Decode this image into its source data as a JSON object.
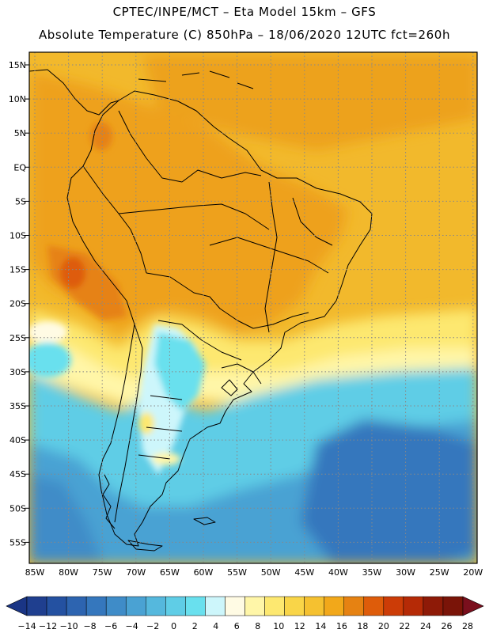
{
  "header": {
    "line1": "CPTEC/INPE/MCT –  Eta Model 15km – GFS",
    "line2": "Absolute Temperature (C) 850hPa – 18/06/2020 12UTC fct=260h"
  },
  "map": {
    "lat_labels": [
      "15N",
      "10N",
      "5N",
      "EQ",
      "5S",
      "10S",
      "15S",
      "20S",
      "25S",
      "30S",
      "35S",
      "40S",
      "45S",
      "50S",
      "55S"
    ],
    "lon_labels": [
      "85W",
      "80W",
      "75W",
      "70W",
      "65W",
      "60W",
      "55W",
      "50W",
      "45W",
      "40W",
      "35W",
      "30W",
      "25W",
      "20W"
    ]
  },
  "colorbar": {
    "labels": [
      "-14",
      "-12",
      "-10",
      "-8",
      "-6",
      "-4",
      "-2",
      "0",
      "2",
      "4",
      "6",
      "8",
      "10",
      "12",
      "14",
      "16",
      "18",
      "20",
      "22",
      "24",
      "26",
      "28"
    ],
    "colors": [
      "#1f3f8f",
      "#2451a1",
      "#2d64b0",
      "#3577bd",
      "#3f8cc8",
      "#4aa2d3",
      "#55b8dd",
      "#5fcde6",
      "#69e0ee",
      "#cdf6fb",
      "#fffbe4",
      "#fff6a8",
      "#fde870",
      "#f9d548",
      "#f5c130",
      "#f2a81a",
      "#e68212",
      "#de5c0a",
      "#cc3c07",
      "#b52a06",
      "#8e1a07",
      "#7a1408"
    ]
  },
  "temperature_field": {
    "regions": [
      {
        "name": "tropical-background",
        "value": "16-18 C"
      },
      {
        "name": "amazon-continent",
        "value": "18-20 C"
      },
      {
        "name": "altiplano-hot-spot",
        "value": "22-24 C"
      },
      {
        "name": "subtropical-transition",
        "value": "10-14 C"
      },
      {
        "name": "south-atlantic",
        "value": "2-4 C"
      },
      {
        "name": "patagonia-deep-south",
        "value": "-6 to -4 C"
      }
    ]
  }
}
